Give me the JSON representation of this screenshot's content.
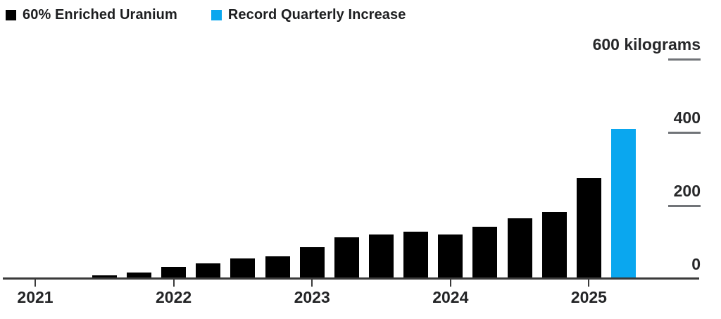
{
  "legend": {
    "items": [
      {
        "label": "60% Enriched Uranium",
        "color": "#000000"
      },
      {
        "label": "Record Quarterly Increase",
        "color": "#0aa7ef"
      }
    ]
  },
  "chart_data": {
    "type": "bar",
    "title": "",
    "unit": "kilograms",
    "categories": [
      "2021 Q1",
      "2021 Q2",
      "2021 Q3",
      "2021 Q4",
      "2022 Q1",
      "2022 Q2",
      "2022 Q3",
      "2022 Q4",
      "2023 Q1",
      "2023 Q2",
      "2023 Q3",
      "2023 Q4",
      "2024 Q1",
      "2024 Q2",
      "2024 Q3",
      "2024 Q4",
      "2025 Q1",
      "2025 Q2"
    ],
    "values": [
      2,
      4,
      10,
      18,
      33,
      43,
      56,
      62,
      87,
      114,
      122,
      128,
      122,
      142,
      165,
      182,
      275,
      409
    ],
    "record_increase_indices": [
      1,
      17
    ],
    "series": [
      {
        "name": "60% Enriched Uranium",
        "color": "#000000"
      },
      {
        "name": "Record Quarterly Increase",
        "color": "#0aa7ef"
      }
    ],
    "xticks": [
      "2021",
      "2022",
      "2023",
      "2024",
      "2025"
    ],
    "yticks": [
      {
        "value": 0,
        "label": "0"
      },
      {
        "value": 200,
        "label": "200"
      },
      {
        "value": 400,
        "label": "400"
      },
      {
        "value": 600,
        "label": "600 kilograms"
      }
    ],
    "ylim": [
      0,
      600
    ],
    "grid": false,
    "axis_side": "right",
    "legend_position": "top-left"
  }
}
